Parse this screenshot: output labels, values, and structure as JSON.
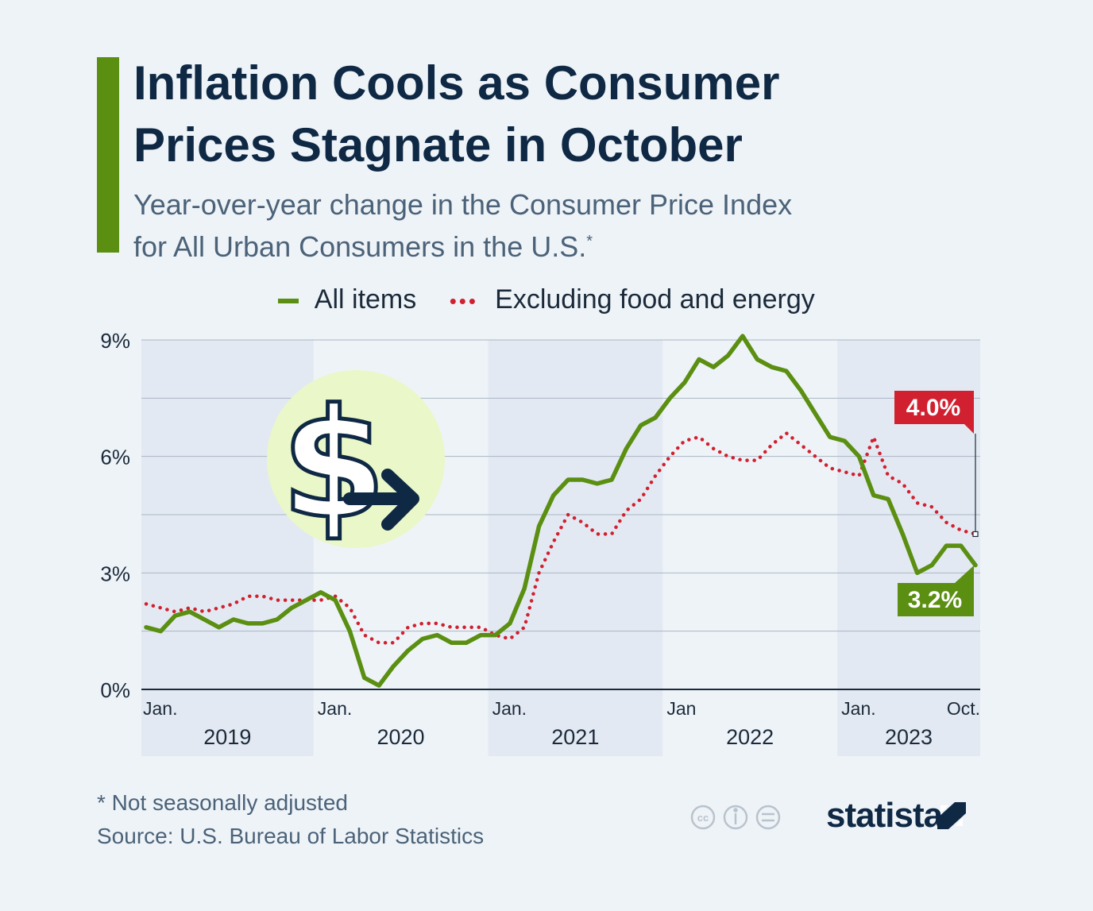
{
  "header": {
    "title_line1": "Inflation Cools as Consumer",
    "title_line2": "Prices Stagnate in October",
    "subtitle_line1": "Year-over-year change in the Consumer Price Index",
    "subtitle_line2": "for All Urban Consumers in the U.S.",
    "subtitle_mark": "*"
  },
  "legend": {
    "all_items": "All items",
    "core": "Excluding food and energy"
  },
  "colors": {
    "all_items": "#5b8f12",
    "core": "#d1202f",
    "title": "#0f2945",
    "band": "#e3e9f2"
  },
  "footer": {
    "footnote": "* Not seasonally adjusted",
    "source": "Source: U.S. Bureau of Labor Statistics",
    "brand": "statista"
  },
  "chart_data": {
    "type": "line",
    "title": "Inflation Cools as Consumer Prices Stagnate in October",
    "ylabel": "",
    "xlabel": "",
    "ylim": [
      0,
      9
    ],
    "y_ticks": [
      0,
      3,
      6,
      9
    ],
    "y_tick_labels": [
      "0%",
      "3%",
      "6%",
      "9%"
    ],
    "years": [
      "2019",
      "2020",
      "2021",
      "2022",
      "2023"
    ],
    "month_labels": [
      "Jan.",
      "Jan.",
      "Jan.",
      "Jan",
      "Jan.",
      "Oct."
    ],
    "x_start": "Jan. 2019",
    "x_end": "Oct. 2023",
    "series": [
      {
        "name": "All items",
        "values": [
          1.6,
          1.5,
          1.9,
          2.0,
          1.8,
          1.6,
          1.8,
          1.7,
          1.7,
          1.8,
          2.1,
          2.3,
          2.5,
          2.3,
          1.5,
          0.3,
          0.1,
          0.6,
          1.0,
          1.3,
          1.4,
          1.2,
          1.2,
          1.4,
          1.4,
          1.7,
          2.6,
          4.2,
          5.0,
          5.4,
          5.4,
          5.3,
          5.4,
          6.2,
          6.8,
          7.0,
          7.5,
          7.9,
          8.5,
          8.3,
          8.6,
          9.1,
          8.5,
          8.3,
          8.2,
          7.7,
          7.1,
          6.5,
          6.4,
          6.0,
          5.0,
          4.9,
          4.0,
          3.0,
          3.2,
          3.7,
          3.7,
          3.2
        ]
      },
      {
        "name": "Excluding food and energy",
        "values": [
          2.2,
          2.1,
          2.0,
          2.1,
          2.0,
          2.1,
          2.2,
          2.4,
          2.4,
          2.3,
          2.3,
          2.3,
          2.3,
          2.4,
          2.1,
          1.4,
          1.2,
          1.2,
          1.6,
          1.7,
          1.7,
          1.6,
          1.6,
          1.6,
          1.4,
          1.3,
          1.6,
          3.0,
          3.8,
          4.5,
          4.3,
          4.0,
          4.0,
          4.6,
          4.9,
          5.5,
          6.0,
          6.4,
          6.5,
          6.2,
          6.0,
          5.9,
          5.9,
          6.3,
          6.6,
          6.3,
          6.0,
          5.7,
          5.6,
          5.5,
          6.5,
          5.5,
          5.3,
          4.8,
          4.7,
          4.3,
          4.1,
          4.0
        ]
      }
    ],
    "annotations": [
      {
        "series": "Excluding food and energy",
        "label": "4.0%"
      },
      {
        "series": "All items",
        "label": "3.2%"
      }
    ]
  }
}
